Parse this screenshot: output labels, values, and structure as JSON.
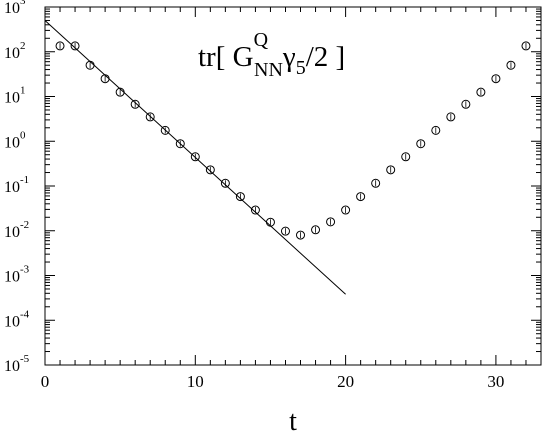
{
  "chart_data": {
    "type": "scatter",
    "title": "",
    "annotation": {
      "prefix": "tr[ G",
      "superscript": "Q",
      "subscript": "NN",
      "gamma": "γ",
      "gamma_subscript": "5",
      "suffix": "/2 ]"
    },
    "xlabel": "t",
    "ylabel": "",
    "xlim": [
      0,
      33
    ],
    "ylim_log10": [
      -5,
      3
    ],
    "yscale": "log",
    "grid": false,
    "x_ticks": [
      {
        "value": 0,
        "label": "0"
      },
      {
        "value": 10,
        "label": "10"
      },
      {
        "value": 20,
        "label": "20"
      },
      {
        "value": 30,
        "label": "30"
      }
    ],
    "y_ticks": [
      {
        "exp": 3,
        "base": "10",
        "power": "3"
      },
      {
        "exp": 2,
        "base": "10",
        "power": "2"
      },
      {
        "exp": 1,
        "base": "10",
        "power": "1"
      },
      {
        "exp": 0,
        "base": "10",
        "power": "0"
      },
      {
        "exp": -1,
        "base": "10",
        "power": "-1"
      },
      {
        "exp": -2,
        "base": "10",
        "power": "-2"
      },
      {
        "exp": -3,
        "base": "10",
        "power": "-3"
      },
      {
        "exp": -4,
        "base": "10",
        "power": "-4"
      },
      {
        "exp": -5,
        "base": "10",
        "power": "-5"
      }
    ],
    "series": [
      {
        "kind": "points",
        "marker": "open-circle",
        "x": [
          1,
          2,
          3,
          4,
          5,
          6,
          7,
          8,
          9,
          10,
          11,
          12,
          13,
          14,
          15,
          16,
          17,
          18,
          19,
          20,
          21,
          22,
          23,
          24,
          25,
          26,
          27,
          28,
          29,
          30,
          31,
          32
        ],
        "y": [
          135,
          135,
          50,
          25,
          12.5,
          6.7,
          3.5,
          1.75,
          0.88,
          0.45,
          0.23,
          0.115,
          0.058,
          0.029,
          0.0155,
          0.0098,
          0.008,
          0.0105,
          0.0158,
          0.029,
          0.058,
          0.115,
          0.23,
          0.45,
          0.88,
          1.75,
          3.5,
          6.7,
          12.5,
          25,
          50,
          135
        ]
      },
      {
        "kind": "line",
        "x": [
          0,
          20
        ],
        "y": [
          500,
          0.00038
        ]
      }
    ],
    "colors": {
      "axis": "#000000",
      "marker": "#000000",
      "line": "#000000",
      "background": "#ffffff"
    }
  }
}
